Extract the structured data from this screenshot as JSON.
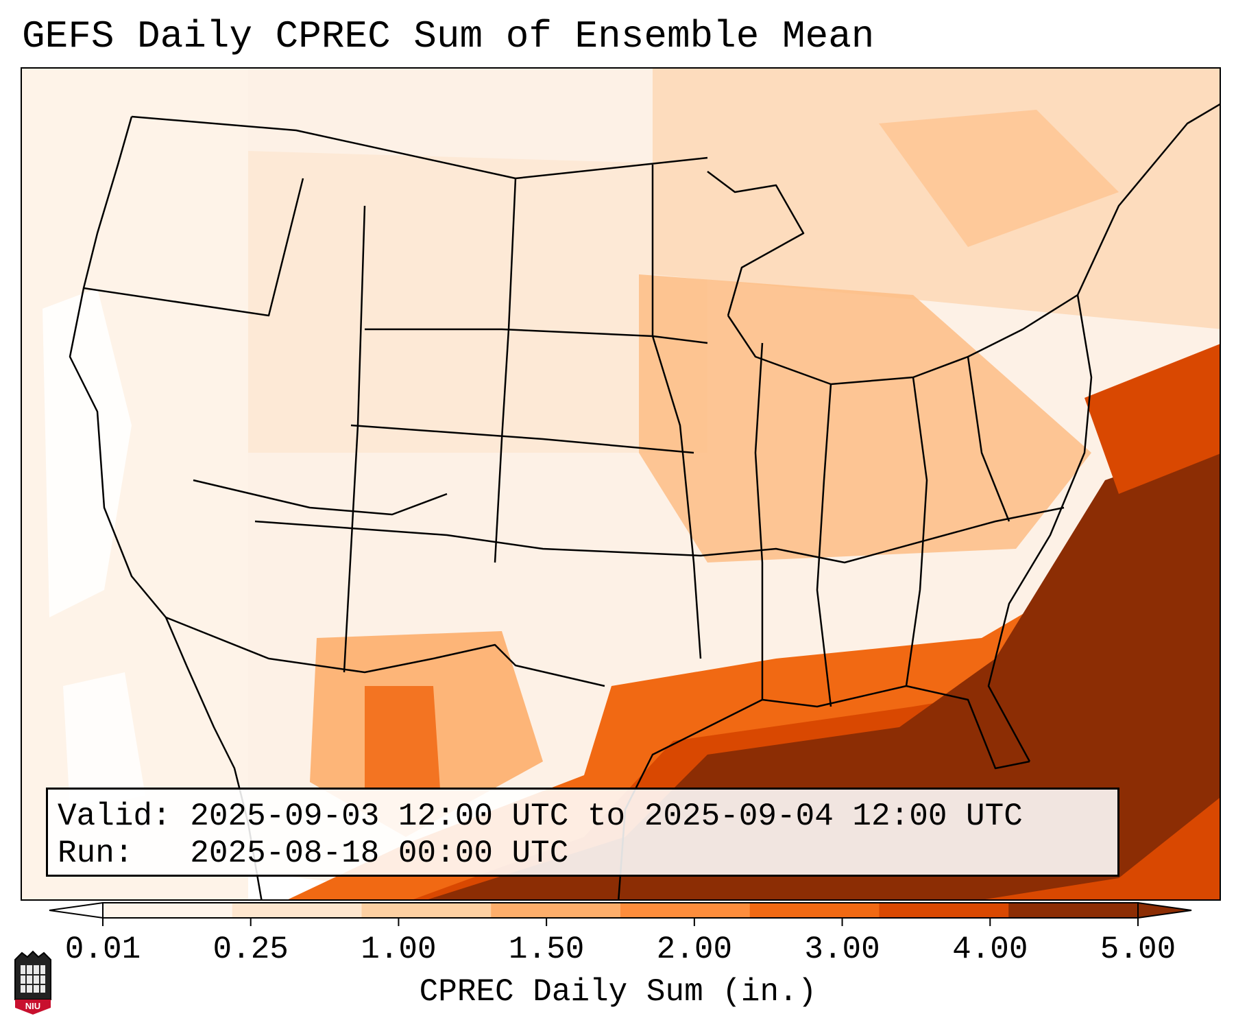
{
  "title": "GEFS Daily CPREC Sum of Ensemble Mean",
  "info": {
    "valid_label": "Valid:",
    "valid_value": "2025-09-03 12:00 UTC to 2025-09-04 12:00 UTC",
    "run_label": "Run:",
    "run_value": "2025-08-18 00:00 UTC"
  },
  "colorbar": {
    "label": "CPREC Daily Sum (in.)",
    "ticks": [
      "0.01",
      "0.25",
      "1.00",
      "1.50",
      "2.00",
      "3.00",
      "4.00",
      "5.00"
    ],
    "colors": [
      "#fff5eb",
      "#fee6ce",
      "#fdd0a2",
      "#fdae6b",
      "#fd8d3c",
      "#f16913",
      "#d94801",
      "#8c2d04"
    ],
    "under_color": "#ffffff",
    "over_color": "#8c2d04"
  },
  "logo": {
    "text": "NIU",
    "color": "#c8102e"
  }
}
